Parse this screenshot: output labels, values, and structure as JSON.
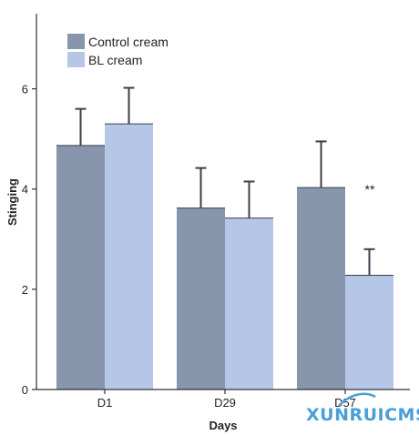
{
  "chart_data": {
    "type": "bar",
    "categories": [
      "D1",
      "D29",
      "D57"
    ],
    "series": [
      {
        "name": "Control cream",
        "color": "#8795ad",
        "values": [
          4.87,
          3.62,
          4.03
        ],
        "error": [
          0.73,
          0.8,
          0.92
        ]
      },
      {
        "name": "BL cream",
        "color": "#b6c6e6",
        "values": [
          5.3,
          3.42,
          2.28
        ],
        "error": [
          0.72,
          0.73,
          0.52
        ]
      }
    ],
    "xlabel": "Days",
    "ylabel": "Stinging",
    "ylim": [
      0,
      7.5
    ],
    "yticks": [
      0,
      2,
      4,
      6
    ],
    "grid": false,
    "legend_position": "top-left",
    "annotations": [
      {
        "category": "D57",
        "series": "BL cream",
        "text": "**"
      }
    ]
  },
  "watermark": {
    "text": "XUNRUICMS",
    "color": "#4a9fd8"
  }
}
